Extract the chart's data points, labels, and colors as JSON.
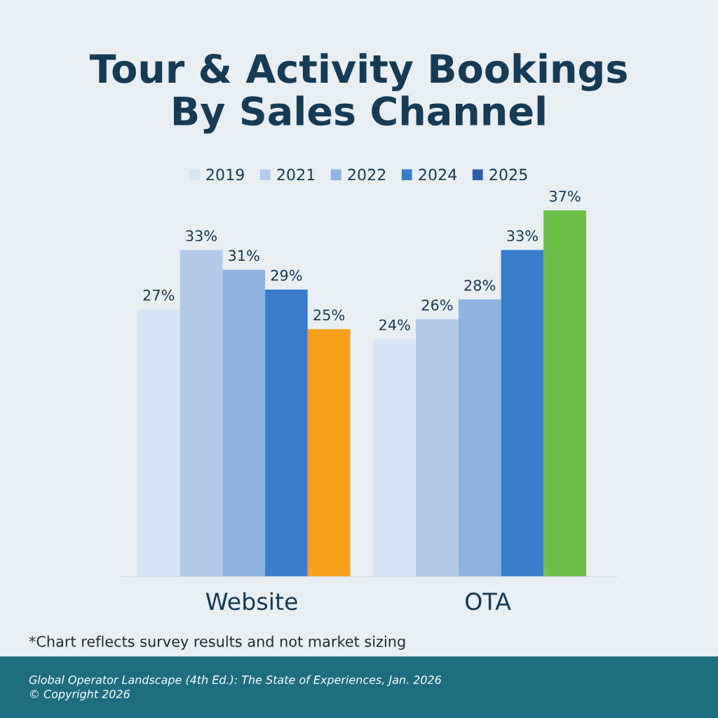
{
  "chart_data": {
    "type": "bar",
    "title": "Tour & Activity Bookings\nBy Sales Channel",
    "categories": [
      "Website",
      "OTA"
    ],
    "series": [
      {
        "name": "2019",
        "color": "#d7e4f4",
        "values": [
          27,
          24
        ],
        "value_labels": [
          "27%",
          "24%"
        ]
      },
      {
        "name": "2021",
        "color": "#b3cbe9",
        "values": [
          33,
          26
        ],
        "value_labels": [
          "33%",
          "26%"
        ]
      },
      {
        "name": "2022",
        "color": "#8fb3e0",
        "values": [
          31,
          28
        ],
        "value_labels": [
          "31%",
          "28%"
        ]
      },
      {
        "name": "2024",
        "color": "#3b7dcc",
        "values": [
          29,
          33
        ],
        "value_labels": [
          "29%",
          "33%"
        ]
      },
      {
        "name": "2025",
        "color": "#2c5ea8",
        "colors": [
          "#f7a01c",
          "#6cc04a"
        ],
        "values": [
          25,
          37
        ],
        "value_labels": [
          "25%",
          "37%"
        ]
      }
    ],
    "legend": "top",
    "grid": false,
    "annotations": [
      "*Chart reflects survey results and not market sizing",
      "Global Operator Landscape (4th Ed.): The State of Experiences, Jan. 2026\n© Copyright 2026"
    ]
  }
}
